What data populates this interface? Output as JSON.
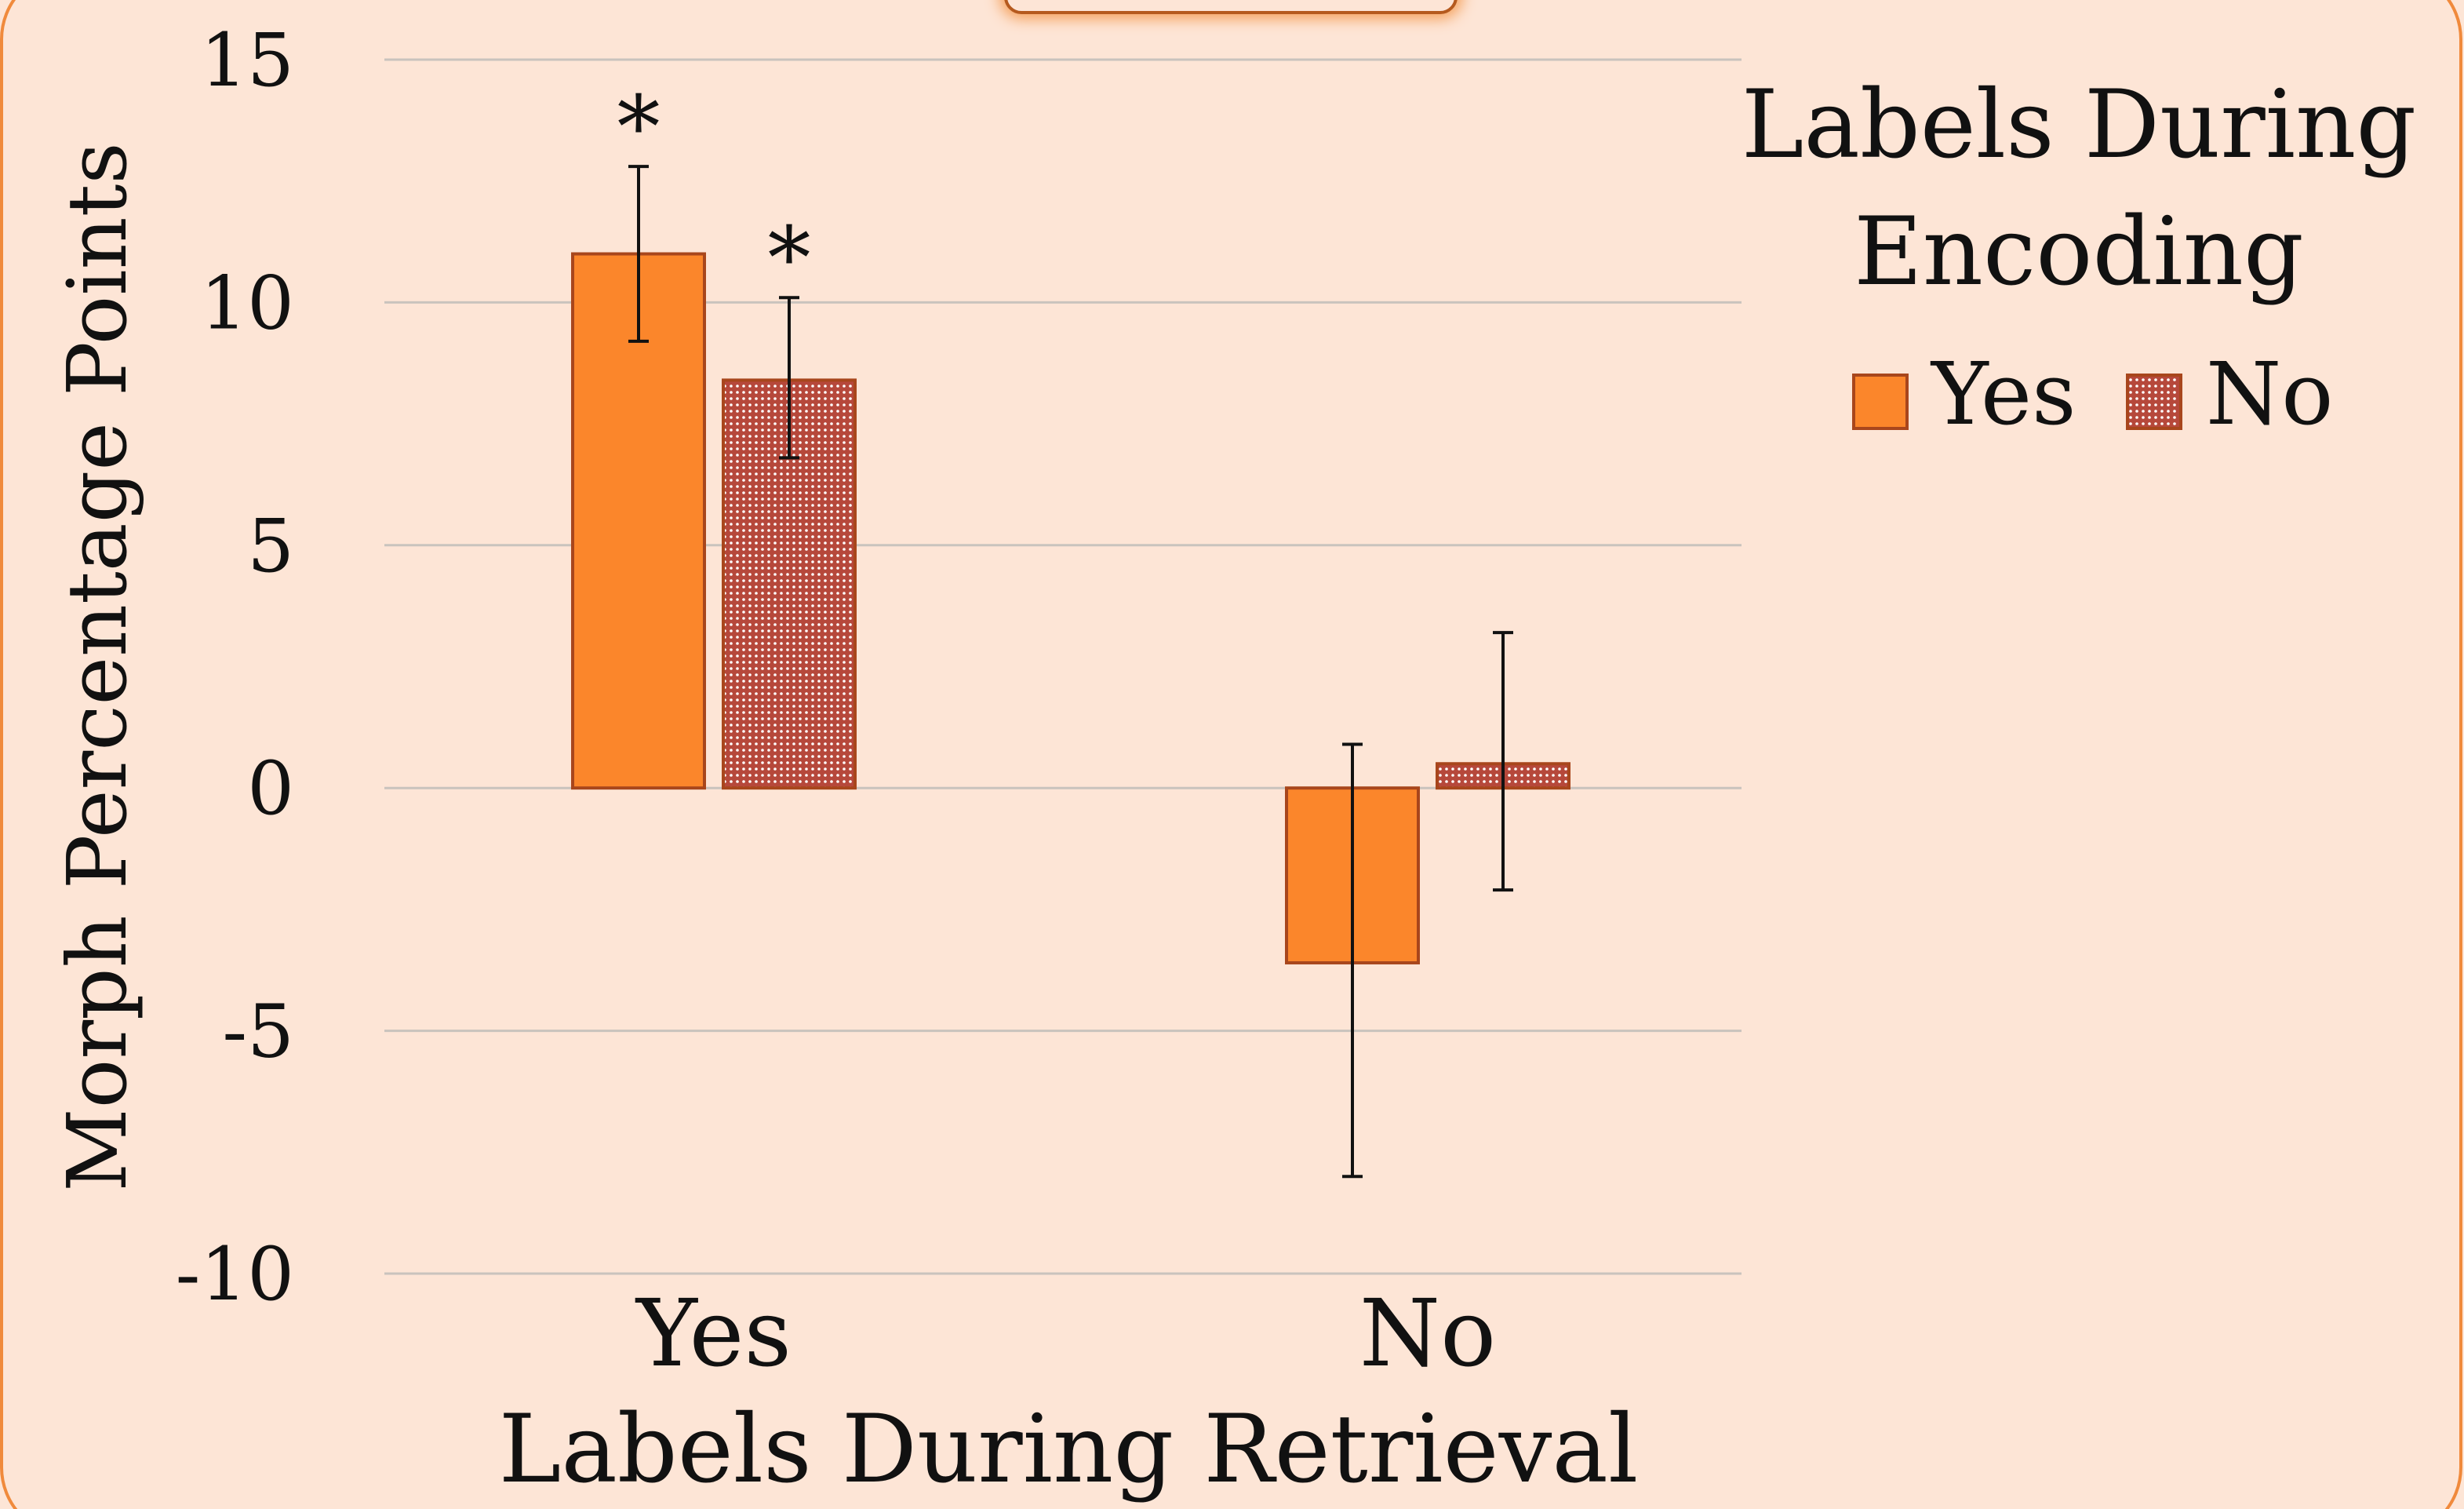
{
  "chart_data": {
    "type": "bar",
    "xlabel": "Labels During Retrieval",
    "ylabel": "Morph Percentage Points",
    "categories": [
      "Yes",
      "No"
    ],
    "ylim": [
      -10,
      15
    ],
    "yticks": [
      "15",
      "10",
      "5",
      "0",
      "-5",
      "-10"
    ],
    "grid": true,
    "legend": {
      "title_lines": [
        "Labels During",
        "Encoding"
      ],
      "placement": "top-right",
      "entries": [
        "Yes",
        "No"
      ]
    },
    "series": [
      {
        "name": "Yes",
        "pattern": "solid",
        "values": [
          11.0,
          -3.6
        ],
        "error_low": [
          9.2,
          -8.0
        ],
        "error_high": [
          12.8,
          0.9
        ],
        "significance": [
          "*",
          ""
        ]
      },
      {
        "name": "No",
        "pattern": "dotted",
        "values": [
          8.4,
          0.5
        ],
        "error_low": [
          6.8,
          -2.1
        ],
        "error_high": [
          10.1,
          3.2
        ],
        "significance": [
          "*",
          ""
        ]
      }
    ]
  },
  "colors": {
    "background": "#fde5d6",
    "frame": "#f08a3c",
    "bar_yes": "#fb862b",
    "bar_no_base": "#ffffff",
    "bar_no_dots": "#b6483b",
    "bar_outline": "#a8461c",
    "gridline": "#c9c3bd",
    "error_bar": "#111111"
  }
}
